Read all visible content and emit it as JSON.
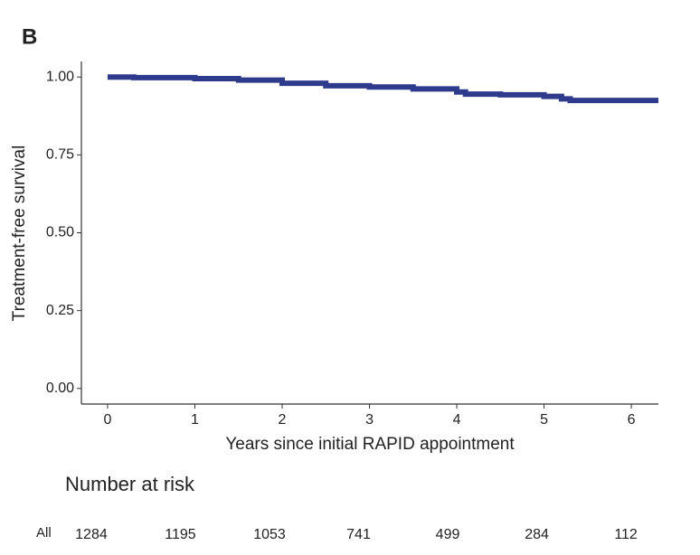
{
  "chart_data": {
    "type": "line",
    "step": true,
    "panel_label": "B",
    "xlabel": "Years since initial RAPID appointment",
    "ylabel": "Treatment-free survival",
    "xlim": [
      -0.3,
      6.31
    ],
    "ylim": [
      -0.05,
      1.05
    ],
    "xticks": [
      0,
      1,
      2,
      3,
      4,
      5,
      6
    ],
    "yticks": [
      {
        "value": 0,
        "label": "0.00"
      },
      {
        "value": 0.25,
        "label": "0.25"
      },
      {
        "value": 0.5,
        "label": "0.50"
      },
      {
        "value": 0.75,
        "label": "0.75"
      },
      {
        "value": 1,
        "label": "1.00"
      }
    ],
    "series": [
      {
        "name": "All",
        "color": "#2e3a8c",
        "x": [
          0,
          0.3,
          1,
          1.5,
          2,
          2.5,
          3,
          3.5,
          4,
          4.1,
          4.5,
          5,
          5.2,
          5.3,
          6.31
        ],
        "values": [
          1.0,
          0.998,
          0.995,
          0.99,
          0.98,
          0.972,
          0.968,
          0.962,
          0.952,
          0.945,
          0.943,
          0.938,
          0.93,
          0.925,
          0.925
        ]
      }
    ],
    "risk_table": {
      "title": "Number at risk",
      "values": [
        1284,
        1195,
        1053,
        741,
        499,
        284,
        112
      ]
    }
  }
}
